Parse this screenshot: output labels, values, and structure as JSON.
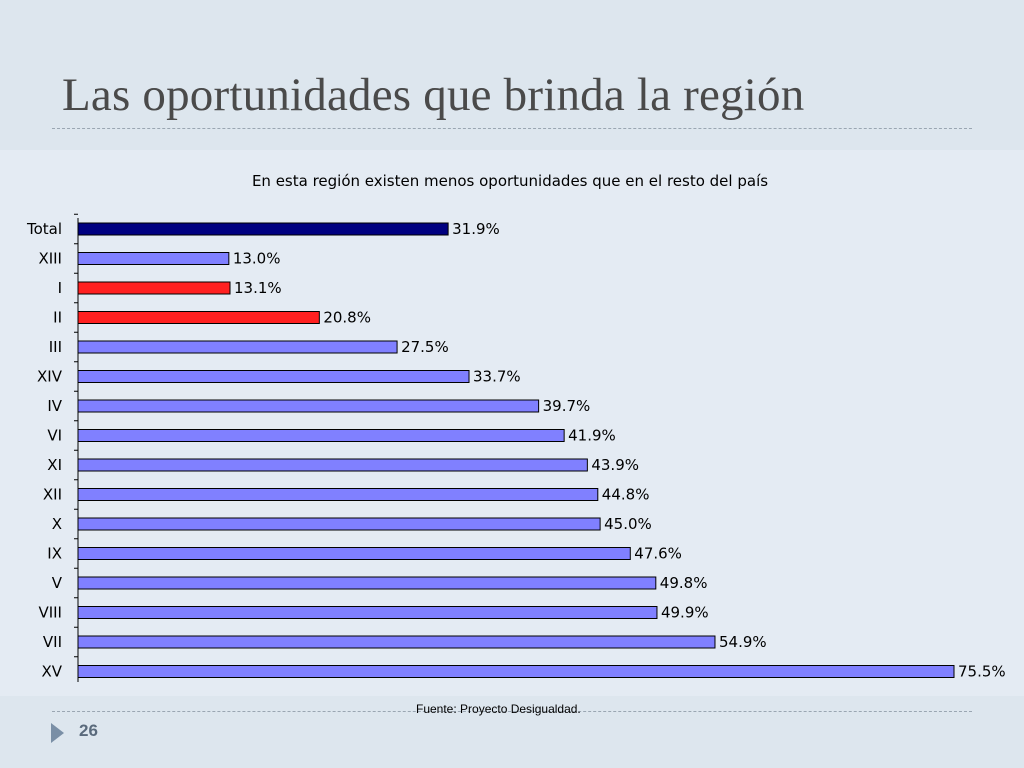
{
  "slide": {
    "title": "Las oportunidades que brinda la región",
    "source": "Fuente: Proyecto Desigualdad.",
    "page_number": "26"
  },
  "colors": {
    "total_bar": "#000080",
    "highlight_bar": "#ff2020",
    "default_bar": "#8080ff",
    "background": "#dde6ee"
  },
  "chart_data": {
    "type": "bar",
    "orientation": "horizontal",
    "title": "En esta región existen menos oportunidades que en el resto del país",
    "categories": [
      "Total",
      "XIII",
      "I",
      "II",
      "III",
      "XIV",
      "IV",
      "VI",
      "XI",
      "XII",
      "X",
      "IX",
      "V",
      "VIII",
      "VII",
      "XV"
    ],
    "values": [
      31.9,
      13.0,
      13.1,
      20.8,
      27.5,
      33.7,
      39.7,
      41.9,
      43.9,
      44.8,
      45.0,
      47.6,
      49.8,
      49.9,
      54.9,
      75.5
    ],
    "value_labels": [
      "31.9%",
      "13.0%",
      "13.1%",
      "20.8%",
      "27.5%",
      "33.7%",
      "39.7%",
      "41.9%",
      "43.9%",
      "44.8%",
      "45.0%",
      "47.6%",
      "49.8%",
      "49.9%",
      "54.9%",
      "75.5%"
    ],
    "bar_colors": [
      "#000080",
      "#8080ff",
      "#ff2020",
      "#ff2020",
      "#8080ff",
      "#8080ff",
      "#8080ff",
      "#8080ff",
      "#8080ff",
      "#8080ff",
      "#8080ff",
      "#8080ff",
      "#8080ff",
      "#8080ff",
      "#8080ff",
      "#8080ff"
    ],
    "xlim": [
      0,
      75.5
    ],
    "grid": false,
    "legend": "none"
  }
}
